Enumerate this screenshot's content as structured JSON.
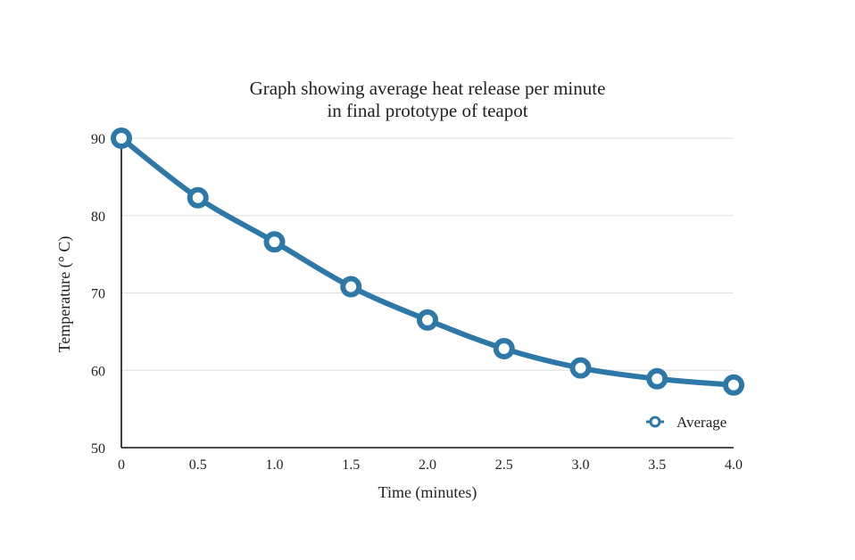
{
  "chart_data": {
    "type": "line",
    "title_lines": [
      "Graph showing average heat release per minute",
      "in final prototype of teapot"
    ],
    "xlabel": "Time (minutes)",
    "ylabel": "Temperature (° C)",
    "x": [
      0,
      0.5,
      1.0,
      1.5,
      2.0,
      2.5,
      3.0,
      3.5,
      4.0
    ],
    "x_tick_labels": [
      "0",
      "0.5",
      "1.0",
      "1.5",
      "2.0",
      "2.5",
      "3.0",
      "3.5",
      "4.0"
    ],
    "y_ticks": [
      50,
      60,
      70,
      80,
      90
    ],
    "y_tick_labels": [
      "50",
      "60",
      "70",
      "80",
      "90"
    ],
    "xlim": [
      0,
      4.0
    ],
    "ylim": [
      50,
      90
    ],
    "grid": "horizontal",
    "legend_position": "bottom-right",
    "series": [
      {
        "name": "Average",
        "values": [
          90,
          82.3,
          76.6,
          70.8,
          66.5,
          62.8,
          60.3,
          58.9,
          58.1
        ],
        "color": "#2e78a8"
      }
    ]
  }
}
